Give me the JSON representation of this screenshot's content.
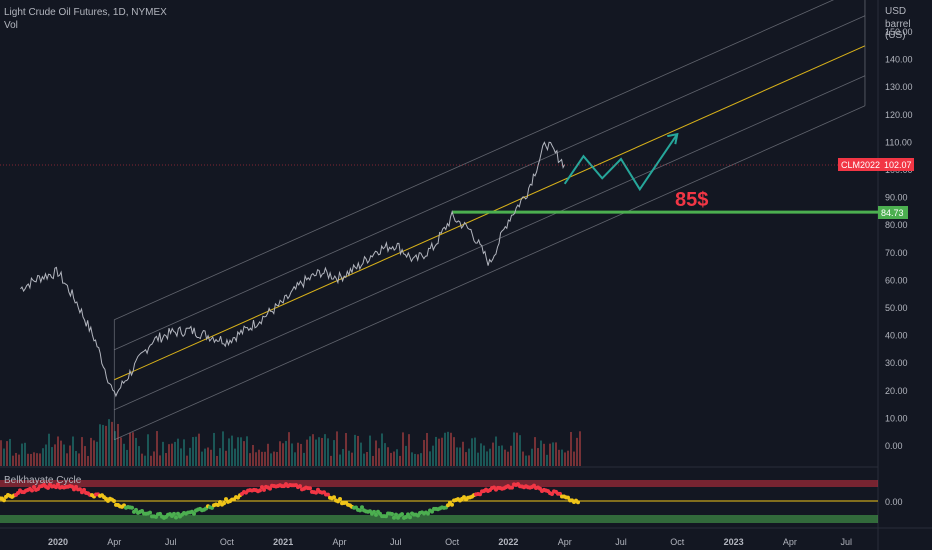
{
  "legend": {
    "symbol_line": "Light Crude Oil Futures, 1D, NYMEX",
    "volume_label": "Vol"
  },
  "price_axis": {
    "currency": "USD",
    "unit": "barrel (US)",
    "ticks": [
      "150.00",
      "140.00",
      "130.00",
      "120.00",
      "110.00",
      "100.00",
      "90.00",
      "80.00",
      "70.00",
      "60.00",
      "50.00",
      "40.00",
      "30.00",
      "20.00",
      "10.00",
      "0.00"
    ]
  },
  "time_axis": {
    "ticks": [
      "2020",
      "Apr",
      "Jul",
      "Oct",
      "2021",
      "Apr",
      "Jul",
      "Oct",
      "2022",
      "Apr",
      "Jul",
      "Oct",
      "2023",
      "Apr",
      "Jul"
    ]
  },
  "badges": {
    "last_symbol": "CLM2022",
    "last_price": "102.07",
    "level_price": "84.73"
  },
  "annotation": {
    "target_text": "85$"
  },
  "indicator": {
    "title": "Belkhayate Cycle",
    "zero_label": "0.00"
  },
  "colors": {
    "background": "#131722",
    "price_line": "#b2b5be",
    "channel": "#9598a1",
    "midline": "#f0c419",
    "level": "#4caf50",
    "projection": "#26a69a",
    "last_badge": "#f23645",
    "annotation": "#f23645"
  },
  "chart_data": {
    "type": "line",
    "title": "Light Crude Oil Futures, 1D, NYMEX",
    "ylabel": "USD barrel (US)",
    "ylim": [
      -10,
      160
    ],
    "x_range": [
      "2019-11",
      "2023-08"
    ],
    "series": [
      {
        "name": "CLM2022",
        "x": [
          "2019-11",
          "2019-12",
          "2020-01",
          "2020-02",
          "2020-03",
          "2020-04",
          "2020-05",
          "2020-06",
          "2020-07",
          "2020-08",
          "2020-09",
          "2020-10",
          "2020-11",
          "2020-12",
          "2021-01",
          "2021-02",
          "2021-03",
          "2021-04",
          "2021-05",
          "2021-06",
          "2021-07",
          "2021-08",
          "2021-09",
          "2021-10",
          "2021-11",
          "2021-12",
          "2022-01",
          "2022-02",
          "2022-03",
          "2022-04"
        ],
        "values": [
          57,
          61,
          63,
          52,
          38,
          18,
          28,
          38,
          41,
          42,
          40,
          38,
          42,
          47,
          52,
          59,
          63,
          61,
          65,
          71,
          73,
          67,
          72,
          83,
          78,
          66,
          82,
          92,
          110,
          102
        ]
      }
    ],
    "projection": {
      "x": [
        "2022-04",
        "2022-05",
        "2022-06",
        "2022-07",
        "2022-08",
        "2022-09",
        "2022-10"
      ],
      "values": [
        95,
        105,
        97,
        104,
        93,
        103,
        113
      ]
    },
    "horizontal_level": 84.73,
    "target_annotation": "85$",
    "channel": {
      "start": {
        "x": "2020-04",
        "y": 24
      },
      "end": {
        "x": "2023-08",
        "y": 145
      }
    }
  }
}
